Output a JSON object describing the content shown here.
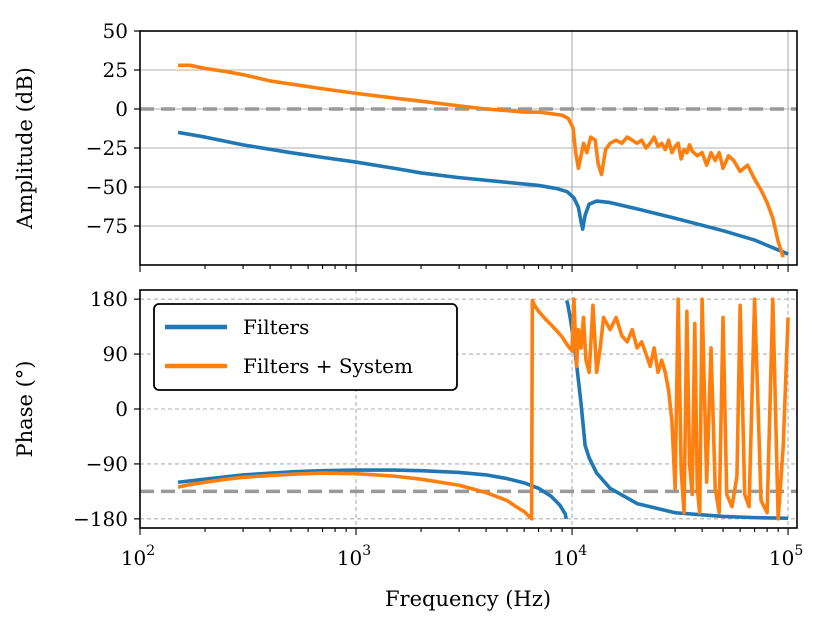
{
  "chart_data": [
    {
      "type": "line",
      "title": "",
      "xlabel": "",
      "ylabel": "Amplitude (dB)",
      "xscale": "log",
      "xlim": [
        100,
        110000
      ],
      "ylim": [
        -100,
        50
      ],
      "yticks": [
        50,
        25,
        0,
        -25,
        -50,
        -75
      ],
      "ytick_labels": [
        "50",
        "25",
        "0",
        "−25",
        "−50",
        "−75"
      ],
      "grid": "solid",
      "reference_line": {
        "y": 0,
        "style": "dashed",
        "color": "#999999"
      },
      "series": [
        {
          "name": "Filters",
          "color": "#1f77b4",
          "x": [
            150,
            200,
            300,
            500,
            700,
            1000,
            1500,
            2000,
            3000,
            5000,
            7000,
            8500,
            9500,
            10200,
            10700,
            11000,
            11200,
            11500,
            12000,
            13000,
            15000,
            20000,
            30000,
            50000,
            70000,
            100000
          ],
          "y": [
            -15,
            -18,
            -23,
            -28,
            -31,
            -34,
            -38,
            -41,
            -44,
            -47,
            -49,
            -51,
            -53,
            -57,
            -63,
            -72,
            -77,
            -68,
            -61,
            -59,
            -60,
            -64,
            -70,
            -78,
            -84,
            -93
          ]
        },
        {
          "name": "Filters + System",
          "color": "#ff7f0e",
          "x": [
            150,
            170,
            200,
            250,
            300,
            400,
            500,
            700,
            1000,
            1500,
            2000,
            3000,
            4000,
            5000,
            6000,
            7000,
            8000,
            9000,
            9600,
            10100,
            10400,
            10700,
            11000,
            11300,
            11700,
            12200,
            12800,
            13200,
            13700,
            14300,
            15000,
            16000,
            17000,
            18000,
            19000,
            20000,
            21000,
            22000,
            23000,
            24000,
            25000,
            26000,
            27000,
            28000,
            29000,
            30000,
            31000,
            32000,
            33000,
            34000,
            35000,
            36000,
            38000,
            40000,
            42000,
            44000,
            46000,
            48000,
            50000,
            53000,
            56000,
            60000,
            65000,
            70000,
            75000,
            80000,
            85000,
            90000,
            95000
          ],
          "y": [
            28,
            28,
            26,
            24,
            22,
            18,
            16,
            13,
            10,
            7,
            5,
            2,
            0,
            -1,
            -2,
            -2,
            -3,
            -4,
            -6,
            -12,
            -28,
            -38,
            -30,
            -22,
            -28,
            -18,
            -20,
            -35,
            -42,
            -26,
            -22,
            -20,
            -22,
            -18,
            -20,
            -22,
            -20,
            -25,
            -22,
            -18,
            -24,
            -22,
            -26,
            -20,
            -28,
            -24,
            -22,
            -32,
            -26,
            -28,
            -23,
            -27,
            -30,
            -28,
            -36,
            -28,
            -33,
            -28,
            -38,
            -30,
            -33,
            -40,
            -36,
            -45,
            -52,
            -60,
            -70,
            -85,
            -95
          ]
        }
      ]
    },
    {
      "type": "line",
      "title": "",
      "xlabel": "Frequency (Hz)",
      "ylabel": "Phase (°)",
      "xscale": "log",
      "xlim": [
        100,
        110000
      ],
      "ylim": [
        -195,
        195
      ],
      "yticks": [
        180,
        90,
        0,
        -90,
        -180
      ],
      "ytick_labels": [
        "180",
        "90",
        "0",
        "−90",
        "−180"
      ],
      "xticks": [
        100,
        1000,
        10000,
        100000
      ],
      "xtick_bases": [
        "10",
        "10",
        "10",
        "10"
      ],
      "xtick_exponents": [
        "2",
        "3",
        "4",
        "5"
      ],
      "grid": "dashed",
      "reference_line": {
        "y": -135,
        "style": "dashed",
        "color": "#999999"
      },
      "legend": {
        "placement": "upper-left",
        "entries": [
          "Filters",
          "Filters + System"
        ]
      },
      "series": [
        {
          "name": "Filters",
          "color": "#1f77b4",
          "x": [
            150,
            200,
            300,
            500,
            700,
            1000,
            1500,
            2000,
            3000,
            4000,
            5000,
            6000,
            7000,
            8000,
            8800,
            9300,
            9400,
            9450,
            9550,
            9800,
            10200,
            10600,
            11000,
            11500,
            12000,
            13000,
            15000,
            20000,
            30000,
            50000,
            70000,
            100000
          ],
          "y": [
            -120,
            -115,
            -108,
            -103,
            -101,
            -100,
            -100,
            -101,
            -104,
            -108,
            -114,
            -121,
            -130,
            -143,
            -158,
            -172,
            -180,
            178,
            172,
            150,
            110,
            60,
            10,
            -60,
            -80,
            -105,
            -130,
            -155,
            -170,
            -176,
            -178,
            -179
          ],
          "breaks_after_x": [
            9400
          ]
        },
        {
          "name": "Filters + System",
          "color": "#ff7f0e",
          "x": [
            150,
            170,
            200,
            250,
            300,
            400,
            500,
            700,
            1000,
            1500,
            2000,
            3000,
            4000,
            5000,
            5500,
            6000,
            6500,
            6550,
            6700,
            7000,
            7500,
            8000,
            8500,
            9000,
            9500,
            10000,
            10200,
            10500,
            10700,
            11000,
            11300,
            11600,
            12000,
            12500,
            13000,
            13500,
            14000,
            15000,
            16000,
            17000,
            18000,
            19000,
            20000,
            21000,
            22000,
            23000,
            24000,
            25000,
            26000,
            27000,
            28000,
            29000,
            30000,
            31000,
            32000,
            33000,
            34000,
            35000,
            36000,
            37000,
            38000,
            39000,
            40000,
            42000,
            44000,
            46000,
            48000,
            50000,
            52000,
            55000,
            58000,
            60000,
            63000,
            66000,
            70000,
            75000,
            80000,
            85000,
            90000,
            95000,
            100000
          ],
          "y": [
            -128,
            -124,
            -120,
            -115,
            -112,
            -109,
            -107,
            -105,
            -106,
            -110,
            -115,
            -125,
            -137,
            -150,
            -160,
            -168,
            -180,
            178,
            170,
            160,
            148,
            138,
            128,
            118,
            105,
            95,
            180,
            70,
            130,
            100,
            150,
            80,
            60,
            170,
            60,
            100,
            150,
            130,
            150,
            120,
            110,
            130,
            100,
            110,
            90,
            70,
            100,
            60,
            80,
            60,
            30,
            -20,
            -130,
            180,
            -100,
            -170,
            160,
            -90,
            -140,
            140,
            -130,
            -170,
            180,
            -120,
            100,
            -130,
            -170,
            150,
            -140,
            -160,
            -110,
            170,
            -140,
            -160,
            180,
            -150,
            -170,
            180,
            -180,
            -60,
            150
          ]
        }
      ]
    }
  ]
}
